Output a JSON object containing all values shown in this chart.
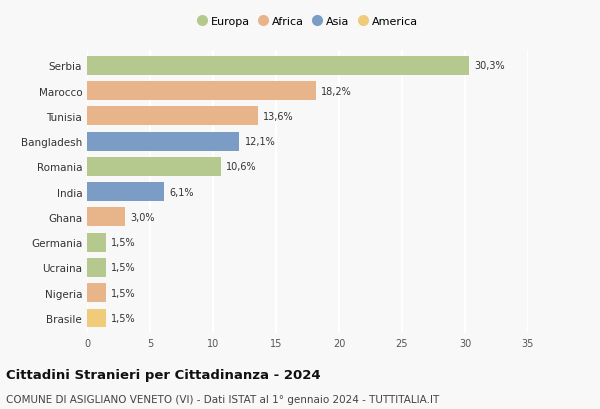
{
  "countries": [
    "Serbia",
    "Marocco",
    "Tunisia",
    "Bangladesh",
    "Romania",
    "India",
    "Ghana",
    "Germania",
    "Ucraina",
    "Nigeria",
    "Brasile"
  ],
  "values": [
    30.3,
    18.2,
    13.6,
    12.1,
    10.6,
    6.1,
    3.0,
    1.5,
    1.5,
    1.5,
    1.5
  ],
  "labels": [
    "30,3%",
    "18,2%",
    "13,6%",
    "12,1%",
    "10,6%",
    "6,1%",
    "3,0%",
    "1,5%",
    "1,5%",
    "1,5%",
    "1,5%"
  ],
  "continents": [
    "Europa",
    "Africa",
    "Africa",
    "Asia",
    "Europa",
    "Asia",
    "Africa",
    "Europa",
    "Europa",
    "Africa",
    "America"
  ],
  "colors": {
    "Europa": "#b5c98e",
    "Africa": "#e8b48a",
    "Asia": "#7b9cc4",
    "America": "#f0cc7a"
  },
  "legend_order": [
    "Europa",
    "Africa",
    "Asia",
    "America"
  ],
  "xlim": [
    0,
    35
  ],
  "xticks": [
    0,
    5,
    10,
    15,
    20,
    25,
    30,
    35
  ],
  "title": "Cittadini Stranieri per Cittadinanza - 2024",
  "subtitle": "COMUNE DI ASIGLIANO VENETO (VI) - Dati ISTAT al 1° gennaio 2024 - TUTTITALIA.IT",
  "bg_color": "#f8f8f8",
  "grid_color": "#ffffff",
  "bar_height": 0.75,
  "title_fontsize": 9.5,
  "subtitle_fontsize": 7.5,
  "label_fontsize": 7,
  "tick_fontsize": 7,
  "legend_fontsize": 8,
  "ytick_fontsize": 7.5
}
